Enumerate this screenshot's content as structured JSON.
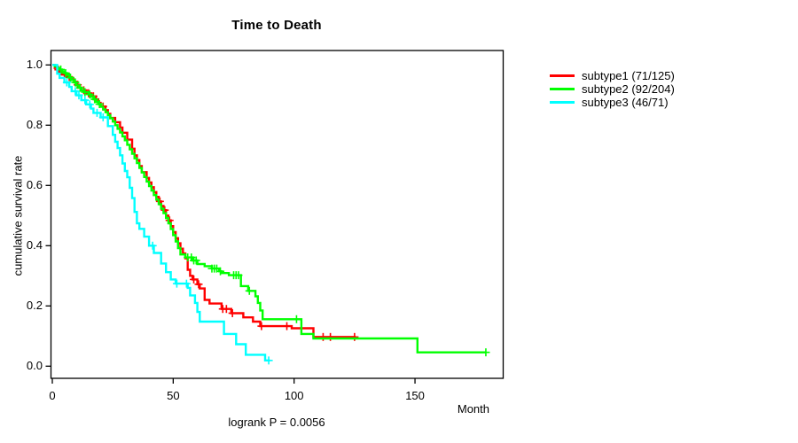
{
  "window": {
    "background": "#ffffff",
    "text_color": "#000000"
  },
  "chart_data": {
    "type": "line",
    "subtype": "kaplan-meier-step-survival",
    "title": "Time to Death",
    "xlabel": "Month",
    "ylabel": "cumulative survival rate",
    "footnote": "logrank P = 0.0056",
    "xlim": [
      0,
      186
    ],
    "ylim": [
      0,
      1
    ],
    "grid": false,
    "legend_position": "right-outside",
    "x_tick_values": [
      0,
      50,
      100,
      150
    ],
    "x_tick_labels": [
      "0",
      "50",
      "100",
      "150"
    ],
    "y_tick_values": [
      0.0,
      0.2,
      0.4,
      0.6,
      0.8,
      1.0
    ],
    "y_tick_labels": [
      "0.0",
      "0.2",
      "0.4",
      "0.6",
      "0.8",
      "1.0"
    ],
    "series": [
      {
        "name": "subtype1",
        "label": "subtype1 (71/125)",
        "color": "#ff0000",
        "end_time": 125.5,
        "points": [
          [
            0,
            1.0
          ],
          [
            1,
            0.99
          ],
          [
            2,
            0.984
          ],
          [
            3,
            0.976
          ],
          [
            4,
            0.968
          ],
          [
            6,
            0.96
          ],
          [
            8,
            0.952
          ],
          [
            9,
            0.944
          ],
          [
            10,
            0.934
          ],
          [
            11,
            0.925
          ],
          [
            12,
            0.916
          ],
          [
            14,
            0.906
          ],
          [
            16,
            0.896
          ],
          [
            18,
            0.886
          ],
          [
            19,
            0.874
          ],
          [
            20,
            0.862
          ],
          [
            22,
            0.85
          ],
          [
            23,
            0.838
          ],
          [
            24,
            0.824
          ],
          [
            26,
            0.81
          ],
          [
            28,
            0.792
          ],
          [
            29,
            0.775
          ],
          [
            31,
            0.752
          ],
          [
            33,
            0.722
          ],
          [
            34,
            0.7
          ],
          [
            35,
            0.684
          ],
          [
            36,
            0.664
          ],
          [
            37,
            0.644
          ],
          [
            39,
            0.625
          ],
          [
            40,
            0.61
          ],
          [
            41,
            0.594
          ],
          [
            42,
            0.578
          ],
          [
            43,
            0.562
          ],
          [
            44,
            0.547
          ],
          [
            45,
            0.532
          ],
          [
            46,
            0.518
          ],
          [
            47,
            0.5
          ],
          [
            48,
            0.484
          ],
          [
            49,
            0.465
          ],
          [
            50,
            0.445
          ],
          [
            51,
            0.425
          ],
          [
            52,
            0.408
          ],
          [
            53,
            0.39
          ],
          [
            54,
            0.374
          ],
          [
            55,
            0.358
          ],
          [
            56,
            0.32
          ],
          [
            57,
            0.3
          ],
          [
            58,
            0.288
          ],
          [
            60,
            0.272
          ],
          [
            61,
            0.258
          ],
          [
            63,
            0.22
          ],
          [
            65,
            0.208
          ],
          [
            70,
            0.19
          ],
          [
            74,
            0.176
          ],
          [
            79,
            0.162
          ],
          [
            83,
            0.148
          ],
          [
            86,
            0.133
          ],
          [
            99,
            0.126
          ],
          [
            108,
            0.097
          ]
        ],
        "censor_times": [
          2.5,
          5,
          7,
          10.5,
          13,
          15,
          17,
          21,
          44.5,
          46.5,
          48.5,
          58.5,
          60.5,
          70.5,
          72,
          74.5,
          86.5,
          97,
          112,
          115,
          125
        ]
      },
      {
        "name": "subtype2",
        "label": "subtype2 (92/204)",
        "color": "#00ff00",
        "end_time": 179.3,
        "points": [
          [
            0,
            1.0
          ],
          [
            1,
            0.995
          ],
          [
            2,
            0.99
          ],
          [
            3,
            0.985
          ],
          [
            4,
            0.979
          ],
          [
            5,
            0.973
          ],
          [
            6,
            0.967
          ],
          [
            7,
            0.958
          ],
          [
            8,
            0.95
          ],
          [
            9,
            0.942
          ],
          [
            10,
            0.932
          ],
          [
            11,
            0.924
          ],
          [
            12,
            0.916
          ],
          [
            13,
            0.91
          ],
          [
            15,
            0.902
          ],
          [
            16,
            0.894
          ],
          [
            17,
            0.886
          ],
          [
            18,
            0.878
          ],
          [
            19,
            0.87
          ],
          [
            20,
            0.861
          ],
          [
            21,
            0.852
          ],
          [
            22,
            0.843
          ],
          [
            23,
            0.833
          ],
          [
            24,
            0.823
          ],
          [
            25,
            0.812
          ],
          [
            26,
            0.8
          ],
          [
            27,
            0.788
          ],
          [
            28,
            0.776
          ],
          [
            29,
            0.763
          ],
          [
            30,
            0.75
          ],
          [
            31,
            0.735
          ],
          [
            32,
            0.72
          ],
          [
            33,
            0.705
          ],
          [
            34,
            0.69
          ],
          [
            35,
            0.674
          ],
          [
            36,
            0.658
          ],
          [
            37,
            0.643
          ],
          [
            38,
            0.628
          ],
          [
            39,
            0.613
          ],
          [
            40,
            0.598
          ],
          [
            41,
            0.583
          ],
          [
            42,
            0.568
          ],
          [
            43,
            0.553
          ],
          [
            44,
            0.538
          ],
          [
            45,
            0.523
          ],
          [
            46,
            0.508
          ],
          [
            47,
            0.492
          ],
          [
            48,
            0.474
          ],
          [
            49,
            0.455
          ],
          [
            50,
            0.435
          ],
          [
            51,
            0.414
          ],
          [
            52,
            0.392
          ],
          [
            53,
            0.371
          ],
          [
            55,
            0.361
          ],
          [
            58,
            0.351
          ],
          [
            60,
            0.339
          ],
          [
            63,
            0.332
          ],
          [
            66,
            0.324
          ],
          [
            69,
            0.315
          ],
          [
            70,
            0.309
          ],
          [
            73,
            0.302
          ],
          [
            78,
            0.266
          ],
          [
            81,
            0.25
          ],
          [
            84,
            0.232
          ],
          [
            85,
            0.21
          ],
          [
            86,
            0.185
          ],
          [
            87,
            0.156
          ],
          [
            103,
            0.107
          ],
          [
            108,
            0.092
          ],
          [
            151,
            0.046
          ]
        ],
        "censor_times": [
          3.5,
          5.5,
          7.5,
          9.5,
          11.5,
          13.5,
          15.5,
          17.5,
          19.5,
          56,
          57.5,
          58.5,
          59.5,
          66,
          67,
          68,
          69.5,
          75,
          76,
          77,
          81.5,
          101,
          179.3
        ]
      },
      {
        "name": "subtype3",
        "label": "subtype3 (46/71)",
        "color": "#00ffff",
        "end_time": 90,
        "points": [
          [
            0,
            1.0
          ],
          [
            2,
            0.971
          ],
          [
            3,
            0.957
          ],
          [
            5,
            0.942
          ],
          [
            7,
            0.927
          ],
          [
            8,
            0.913
          ],
          [
            10,
            0.899
          ],
          [
            12,
            0.883
          ],
          [
            14,
            0.869
          ],
          [
            16,
            0.855
          ],
          [
            17,
            0.841
          ],
          [
            20,
            0.826
          ],
          [
            23,
            0.797
          ],
          [
            25,
            0.768
          ],
          [
            26,
            0.745
          ],
          [
            27,
            0.724
          ],
          [
            28,
            0.7
          ],
          [
            29,
            0.673
          ],
          [
            30,
            0.648
          ],
          [
            31,
            0.627
          ],
          [
            32,
            0.592
          ],
          [
            33,
            0.558
          ],
          [
            34,
            0.512
          ],
          [
            35,
            0.474
          ],
          [
            36,
            0.456
          ],
          [
            38,
            0.43
          ],
          [
            40,
            0.4
          ],
          [
            42,
            0.376
          ],
          [
            45,
            0.341
          ],
          [
            47,
            0.312
          ],
          [
            49,
            0.288
          ],
          [
            51,
            0.274
          ],
          [
            56,
            0.26
          ],
          [
            57,
            0.235
          ],
          [
            59,
            0.21
          ],
          [
            60,
            0.18
          ],
          [
            61,
            0.148
          ],
          [
            71,
            0.107
          ],
          [
            76,
            0.073
          ],
          [
            80,
            0.038
          ],
          [
            88,
            0.019
          ]
        ],
        "censor_times": [
          6,
          9.5,
          11,
          13.5,
          15.5,
          18.5,
          21,
          41.5,
          51.5,
          55.5,
          89.5
        ]
      }
    ]
  }
}
